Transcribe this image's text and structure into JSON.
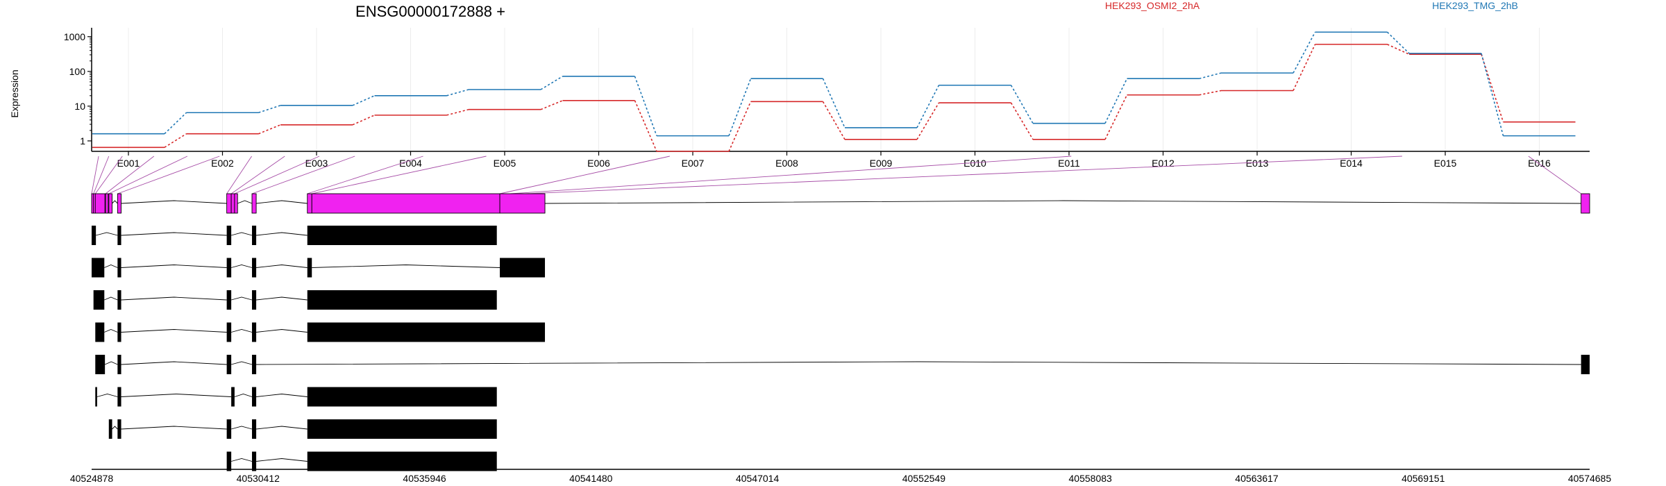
{
  "chart_data": {
    "type": "line",
    "title": "ENSG00000172888 +",
    "ylabel": "Expression",
    "y_scale": "log",
    "y_ticks": [
      1,
      10,
      100,
      1000
    ],
    "y_tick_labels": [
      "1",
      "10",
      "100",
      "1000"
    ],
    "ylim": [
      0.5,
      1800
    ],
    "grid": "vertical",
    "legend_position": "top-right",
    "categories": [
      "E001",
      "E002",
      "E003",
      "E004",
      "E005",
      "E006",
      "E007",
      "E008",
      "E009",
      "E010",
      "E011",
      "E012",
      "E013",
      "E014",
      "E015",
      "E016"
    ],
    "series": [
      {
        "name": "HEK293_OSMI2_2hA",
        "color": "#d62728",
        "values": [
          0.65,
          1.6,
          2.9,
          5.5,
          8.0,
          14.5,
          0.5,
          13.5,
          1.1,
          12.5,
          1.1,
          21,
          28,
          600,
          310,
          3.5
        ]
      },
      {
        "name": "HEK293_TMG_2hB",
        "color": "#1f77b4",
        "values": [
          1.6,
          6.5,
          10.5,
          20,
          30,
          72,
          1.4,
          62,
          2.4,
          40,
          3.2,
          62,
          90,
          1350,
          330,
          1.4
        ]
      }
    ],
    "genomic_axis": {
      "range": [
        40524878,
        40574685
      ],
      "tick_labels": [
        "40524878",
        "40530412",
        "40535946",
        "40541480",
        "40547014",
        "40552549",
        "40558083",
        "40563617",
        "40569151",
        "40574685"
      ]
    },
    "gene_model": {
      "exon_color": "#f022f0",
      "exons": [
        [
          40524878,
          40524940
        ],
        [
          40524940,
          40525000
        ],
        [
          40525000,
          40525320
        ],
        [
          40525340,
          40525430
        ],
        [
          40525450,
          40525560
        ],
        [
          40525740,
          40525860
        ],
        [
          40529370,
          40529520
        ],
        [
          40529520,
          40529630
        ],
        [
          40529630,
          40529730
        ],
        [
          40530210,
          40530350
        ],
        [
          40532050,
          40532200
        ],
        [
          40532200,
          40538450
        ],
        [
          40538450,
          40539950
        ],
        [
          40574400,
          40574685
        ]
      ],
      "links": [
        [
          40524878,
          40525110
        ],
        [
          40524940,
          40525450
        ],
        [
          40525000,
          40525900
        ],
        [
          40525340,
          40526950
        ],
        [
          40525450,
          40528060
        ],
        [
          40525740,
          40529130
        ],
        [
          40529370,
          40530200
        ],
        [
          40529520,
          40531300
        ],
        [
          40529630,
          40532450
        ],
        [
          40530210,
          40533630
        ],
        [
          40532050,
          40535900
        ],
        [
          40532200,
          40538000
        ],
        [
          40538450,
          40544100
        ],
        [
          40538800,
          40557450
        ],
        [
          40539300,
          40568450
        ],
        [
          40574400,
          40572650
        ]
      ]
    },
    "transcripts": [
      [
        [
          40524878,
          40525020
        ],
        [
          40525740,
          40525860
        ],
        [
          40529370,
          40529520
        ],
        [
          40530210,
          40530350
        ],
        [
          40532050,
          40538350
        ]
      ],
      [
        [
          40524878,
          40525300
        ],
        [
          40525740,
          40525860
        ],
        [
          40529370,
          40529520
        ],
        [
          40530210,
          40530350
        ],
        [
          40532050,
          40532200
        ],
        [
          40538450,
          40539950
        ]
      ],
      [
        [
          40524940,
          40525300
        ],
        [
          40525740,
          40525860
        ],
        [
          40529370,
          40529520
        ],
        [
          40530210,
          40530350
        ],
        [
          40532050,
          40538350
        ]
      ],
      [
        [
          40525000,
          40525300
        ],
        [
          40525740,
          40525860
        ],
        [
          40529370,
          40529520
        ],
        [
          40530210,
          40530350
        ],
        [
          40532050,
          40539950
        ]
      ],
      [
        [
          40525000,
          40525320
        ],
        [
          40525740,
          40525860
        ],
        [
          40529370,
          40529520
        ],
        [
          40530210,
          40530350
        ],
        [
          40574400,
          40574685
        ]
      ],
      [
        [
          40525000,
          40525060
        ],
        [
          40525740,
          40525860
        ],
        [
          40529520,
          40529630
        ],
        [
          40530210,
          40530350
        ],
        [
          40532050,
          40538350
        ]
      ],
      [
        [
          40525450,
          40525560
        ],
        [
          40525740,
          40525860
        ],
        [
          40529370,
          40529520
        ],
        [
          40530210,
          40530350
        ],
        [
          40532050,
          40538350
        ]
      ],
      [
        [
          40529370,
          40529520
        ],
        [
          40530210,
          40530350
        ],
        [
          40532050,
          40538350
        ]
      ]
    ]
  }
}
